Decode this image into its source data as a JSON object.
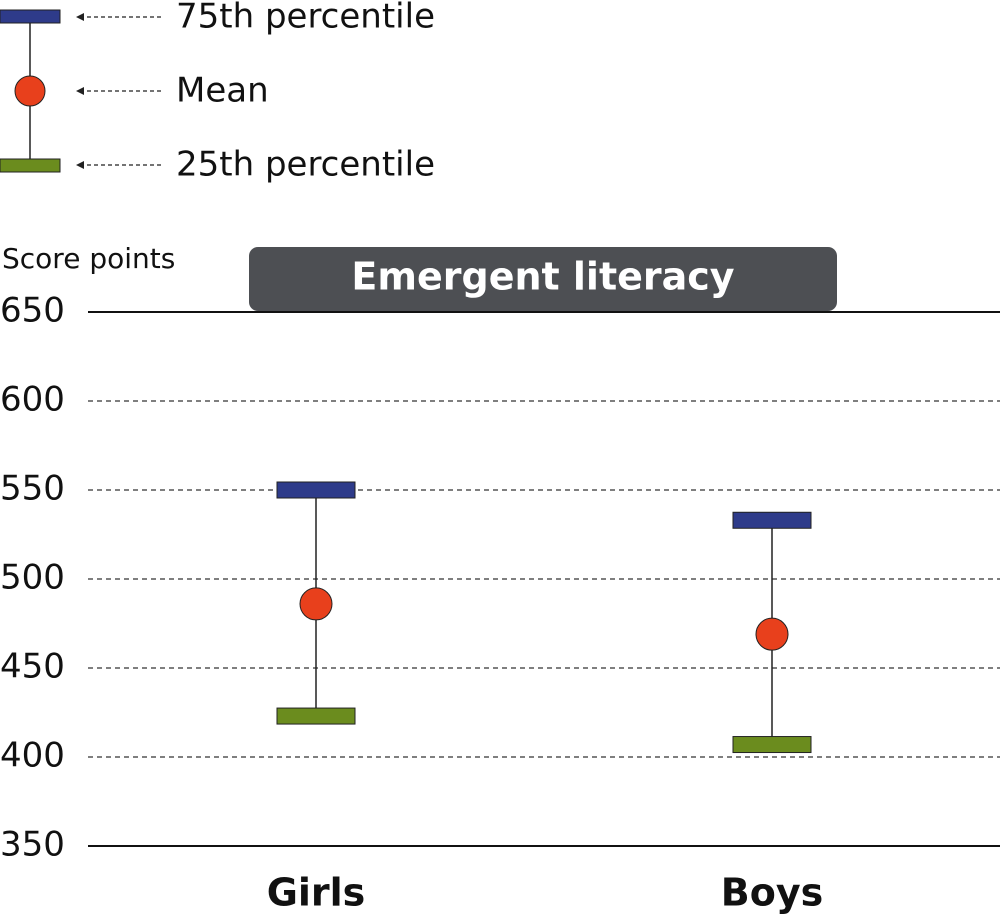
{
  "chart_data": {
    "type": "range-dot",
    "title": "Emergent literacy",
    "y_label": "Score points",
    "categories": [
      "Girls",
      "Boys"
    ],
    "series": [
      {
        "name": "75th percentile",
        "color": "#2e3b8a",
        "values": [
          550,
          533
        ]
      },
      {
        "name": "Mean",
        "color": "#e8401c",
        "values": [
          486,
          469
        ]
      },
      {
        "name": "25th percentile",
        "color": "#6b8c1e",
        "values": [
          423,
          407
        ]
      }
    ],
    "ylim": [
      350,
      650
    ],
    "yticks": [
      350,
      400,
      450,
      500,
      550,
      600,
      650
    ],
    "grid": true
  }
}
